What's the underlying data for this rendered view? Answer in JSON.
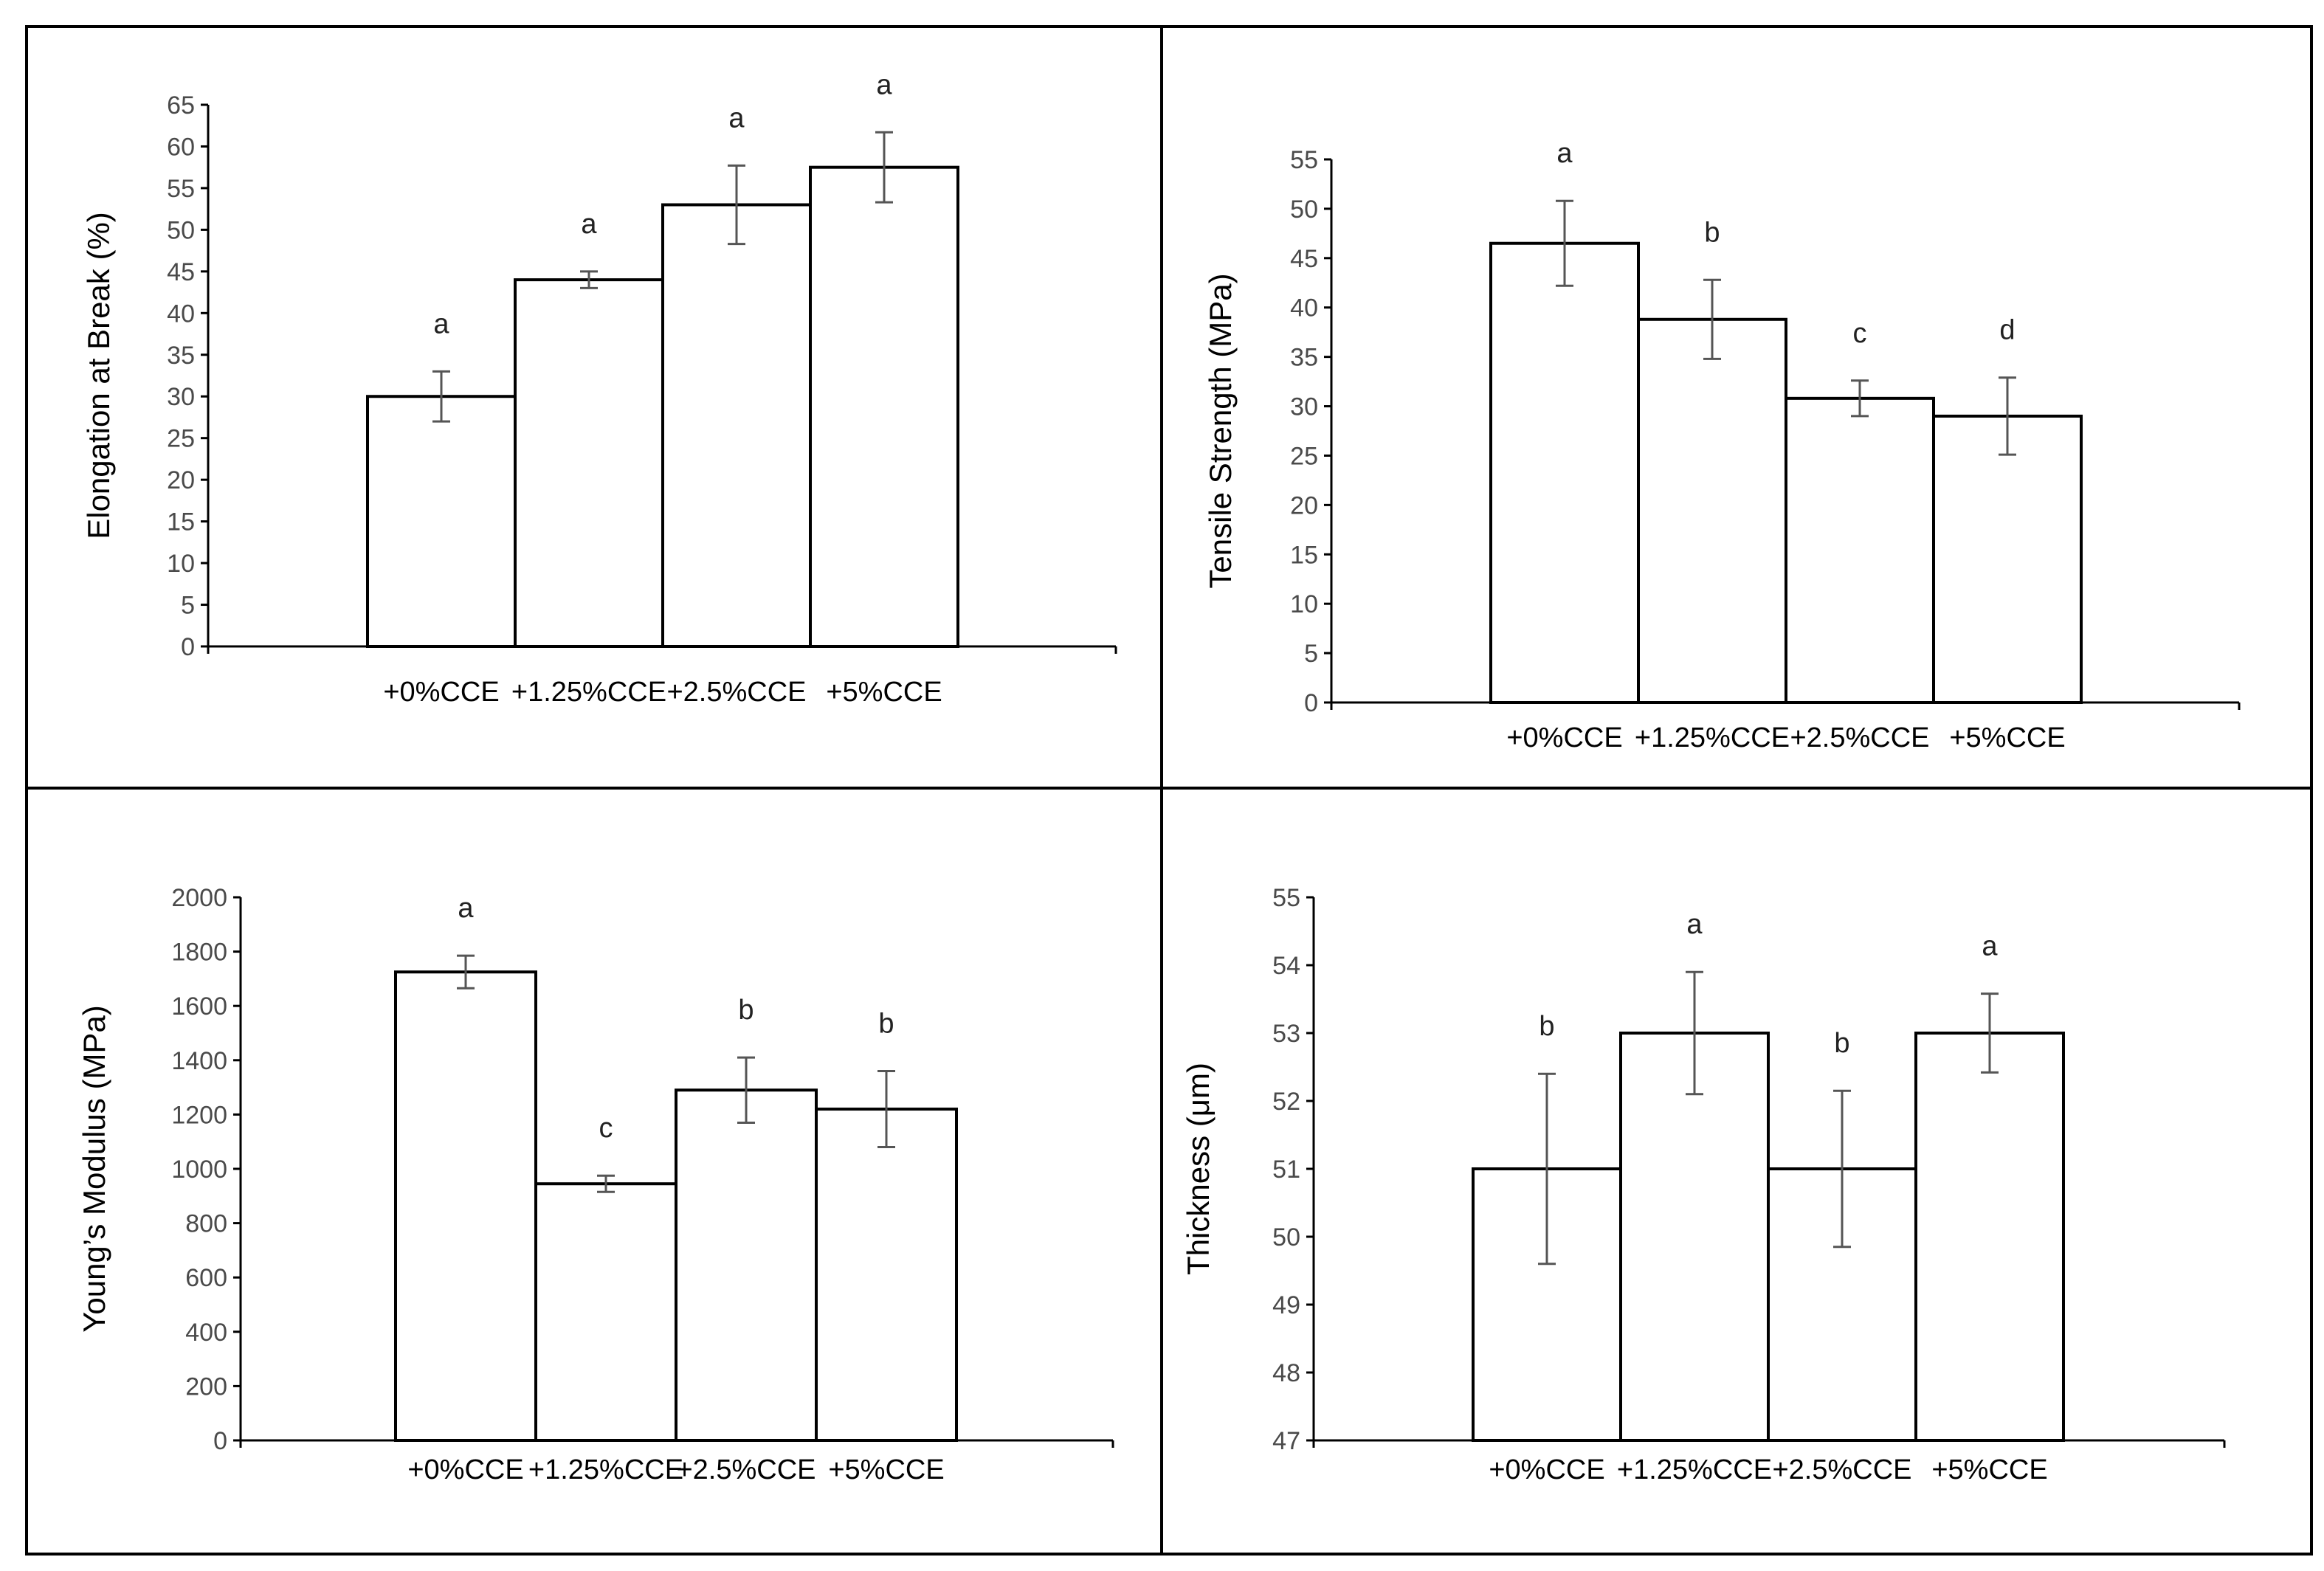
{
  "chart_data": [
    {
      "type": "bar",
      "categories": [
        "+0%CCE",
        "+1.25%CCE",
        "+2.5%CCE",
        "+5%CCE"
      ],
      "values": [
        30,
        44,
        53,
        57.5
      ],
      "errors": [
        3,
        1,
        4.7,
        4.2
      ],
      "letters": [
        "a",
        "a",
        "a",
        "a"
      ],
      "title": "",
      "xlabel": "",
      "ylabel": "Elongation at Break  (%)",
      "ylim": [
        0,
        65
      ],
      "yticks": [
        0,
        5,
        10,
        15,
        20,
        25,
        30,
        35,
        40,
        45,
        50,
        55,
        60,
        65
      ]
    },
    {
      "type": "bar",
      "categories": [
        "+0%CCE",
        "+1.25%CCE",
        "+2.5%CCE",
        "+5%CCE"
      ],
      "values": [
        46.5,
        38.8,
        30.8,
        29
      ],
      "errors": [
        4.3,
        4,
        1.8,
        3.9
      ],
      "letters": [
        "a",
        "b",
        "c",
        "d"
      ],
      "title": "",
      "xlabel": "",
      "ylabel": "Tensile Strength (MPa)",
      "ylim": [
        0,
        55
      ],
      "yticks": [
        0,
        5,
        10,
        15,
        20,
        25,
        30,
        35,
        40,
        45,
        50,
        55
      ]
    },
    {
      "type": "bar",
      "categories": [
        "+0%CCE",
        "+1.25%CCE",
        "+2.5%CCE",
        "+5%CCE"
      ],
      "values": [
        1725,
        945,
        1290,
        1220
      ],
      "errors": [
        60,
        30,
        120,
        140
      ],
      "letters": [
        "a",
        "c",
        "b",
        "b"
      ],
      "title": "",
      "xlabel": "",
      "ylabel": "Young’s Modulus (MPa)",
      "ylim": [
        0,
        2000
      ],
      "yticks": [
        0,
        200,
        400,
        600,
        800,
        1000,
        1200,
        1400,
        1600,
        1800,
        2000
      ]
    },
    {
      "type": "bar",
      "categories": [
        "+0%CCE",
        "+1.25%CCE",
        "+2.5%CCE",
        "+5%CCE"
      ],
      "values": [
        51,
        53,
        51,
        53
      ],
      "errors": [
        1.4,
        0.9,
        1.15,
        0.58
      ],
      "letters": [
        "b",
        "a",
        "b",
        "a"
      ],
      "title": "",
      "xlabel": "",
      "ylabel": "Thickness (μm)",
      "ylim": [
        47,
        55
      ],
      "yticks": [
        47,
        48,
        49,
        50,
        51,
        52,
        53,
        54,
        55
      ]
    }
  ]
}
